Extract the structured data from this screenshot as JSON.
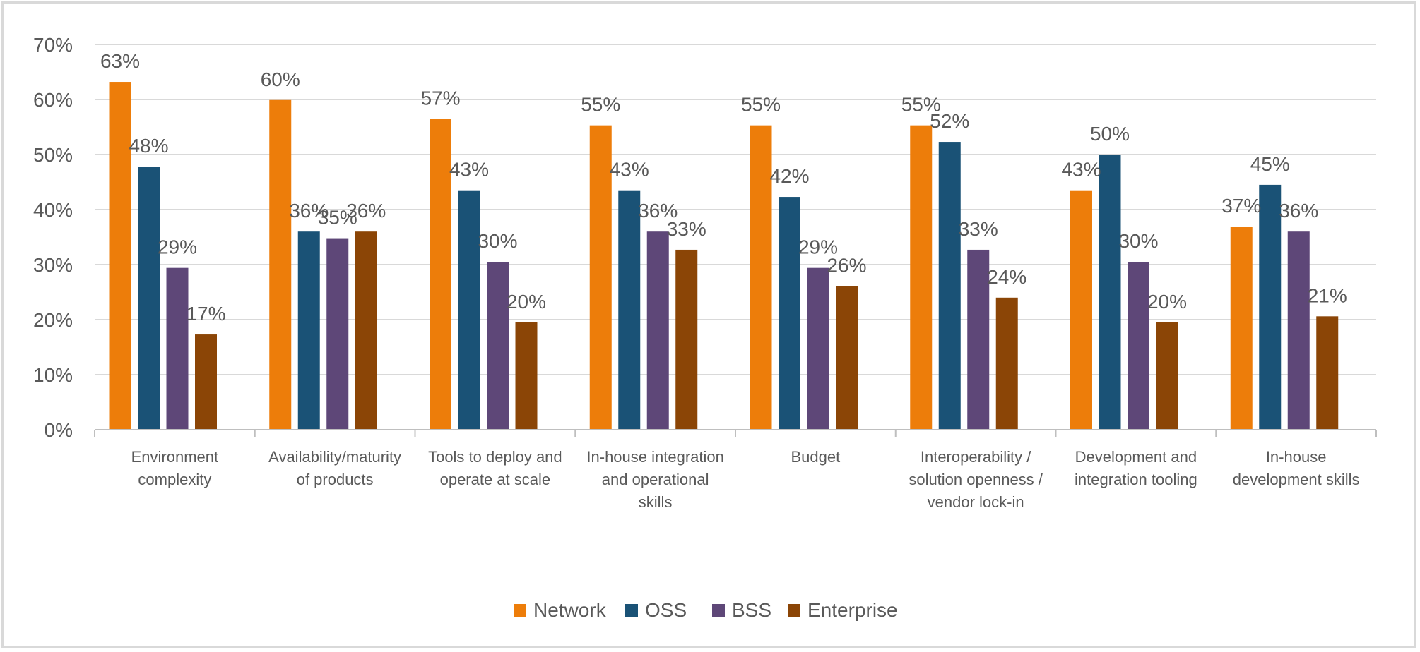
{
  "chart_data": {
    "type": "bar",
    "categories": [
      [
        "Environment",
        "complexity"
      ],
      [
        "Availability/maturity",
        "of products"
      ],
      [
        "Tools to deploy and",
        "operate at scale"
      ],
      [
        "In-house integration",
        "and operational",
        "skills"
      ],
      [
        "Budget"
      ],
      [
        "Interoperability /",
        "solution openness /",
        "vendor lock-in"
      ],
      [
        "Development and",
        "integration tooling"
      ],
      [
        "In-house",
        "development  skills"
      ]
    ],
    "series": [
      {
        "name": "Network",
        "color": "#ED7D0A",
        "values": [
          63,
          60,
          57,
          55,
          55,
          55,
          43,
          37
        ],
        "heights": [
          63.2,
          59.9,
          56.5,
          55.3,
          55.3,
          55.3,
          43.5,
          36.9
        ]
      },
      {
        "name": "OSS",
        "color": "#1A5276",
        "values": [
          48,
          36,
          43,
          43,
          42,
          52,
          50,
          45
        ],
        "heights": [
          47.8,
          36.0,
          43.5,
          43.5,
          42.3,
          52.3,
          50.0,
          44.5
        ]
      },
      {
        "name": "BSS",
        "color": "#5E4778",
        "values": [
          29,
          35,
          30,
          36,
          29,
          33,
          30,
          36
        ],
        "heights": [
          29.4,
          34.8,
          30.5,
          36.0,
          29.4,
          32.7,
          30.5,
          36.0
        ]
      },
      {
        "name": "Enterprise",
        "color": "#8B4506",
        "values": [
          17,
          36,
          20,
          33,
          26,
          24,
          20,
          21
        ],
        "heights": [
          17.3,
          36.0,
          19.5,
          32.7,
          26.1,
          24.0,
          19.5,
          20.6
        ]
      }
    ],
    "value_suffix": "%",
    "ylim": [
      0,
      70
    ],
    "yticks": [
      0,
      10,
      20,
      30,
      40,
      50,
      60,
      70
    ],
    "ytick_labels": [
      "0%",
      "10%",
      "20%",
      "30%",
      "40%",
      "50%",
      "60%",
      "70%"
    ],
    "gridlines": true,
    "legend_position": "bottom",
    "title": "",
    "xlabel": "",
    "ylabel": ""
  }
}
